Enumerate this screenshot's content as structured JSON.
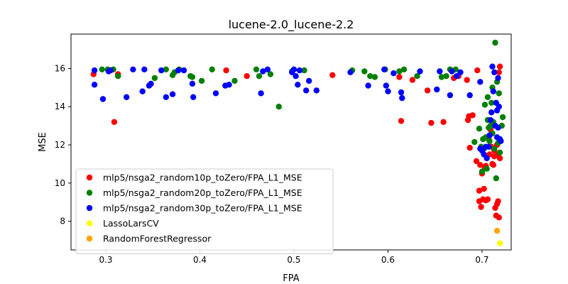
{
  "chart_data": {
    "type": "scatter",
    "title": "lucene-2.0_lucene-2.2",
    "xlabel": "FPA",
    "ylabel": "MSE",
    "xlim": [
      0.263,
      0.731
    ],
    "ylim": [
      6.5,
      17.8
    ],
    "xticks": [
      0.3,
      0.4,
      0.5,
      0.6,
      0.7
    ],
    "xtick_labels": [
      "0.3",
      "0.4",
      "0.5",
      "0.6",
      "0.7"
    ],
    "yticks": [
      8,
      10,
      12,
      14,
      16
    ],
    "ytick_labels": [
      "8",
      "10",
      "12",
      "14",
      "16"
    ],
    "grid": false,
    "legend_position": "lower-left",
    "series": [
      {
        "name": "mlp5/nsga2_random10p_toZero/FPA_L1_MSE",
        "color": "#ff0000",
        "points": [
          [
            0.287,
            15.7
          ],
          [
            0.309,
            13.2
          ],
          [
            0.313,
            15.7
          ],
          [
            0.428,
            15.9
          ],
          [
            0.45,
            15.6
          ],
          [
            0.541,
            15.65
          ],
          [
            0.612,
            15.55
          ],
          [
            0.614,
            13.25
          ],
          [
            0.626,
            15.4
          ],
          [
            0.642,
            14.85
          ],
          [
            0.646,
            13.15
          ],
          [
            0.659,
            13.2
          ],
          [
            0.67,
            15.5
          ],
          [
            0.675,
            15.6
          ],
          [
            0.684,
            15.4
          ],
          [
            0.685,
            13.3
          ],
          [
            0.686,
            13.5
          ],
          [
            0.687,
            11.85
          ],
          [
            0.69,
            13.55
          ],
          [
            0.694,
            11.15
          ],
          [
            0.695,
            15.9
          ],
          [
            0.697,
            9.05
          ],
          [
            0.697,
            9.6
          ],
          [
            0.698,
            10.95
          ],
          [
            0.699,
            8.75
          ],
          [
            0.7,
            10.5
          ],
          [
            0.701,
            9.15
          ],
          [
            0.702,
            9.7
          ],
          [
            0.703,
            10.8
          ],
          [
            0.704,
            9.1
          ],
          [
            0.704,
            10.9
          ],
          [
            0.706,
            9.15
          ],
          [
            0.707,
            12.3
          ],
          [
            0.708,
            11.5
          ],
          [
            0.709,
            12.8
          ],
          [
            0.71,
            11.9
          ],
          [
            0.711,
            11.0
          ],
          [
            0.712,
            10.95
          ],
          [
            0.713,
            11.7
          ],
          [
            0.713,
            11.4
          ],
          [
            0.714,
            8.7
          ],
          [
            0.715,
            8.3
          ],
          [
            0.716,
            8.9
          ],
          [
            0.716,
            12.0
          ],
          [
            0.717,
            9.05
          ],
          [
            0.717,
            11.5
          ],
          [
            0.718,
            8.2
          ],
          [
            0.718,
            15.8
          ],
          [
            0.719,
            11.3
          ],
          [
            0.719,
            16.1
          ]
        ]
      },
      {
        "name": "mlp5/nsga2_random20p_toZero/FPA_L1_MSE",
        "color": "#008000",
        "points": [
          [
            0.296,
            15.95
          ],
          [
            0.302,
            15.95
          ],
          [
            0.308,
            15.95
          ],
          [
            0.313,
            15.6
          ],
          [
            0.352,
            15.5
          ],
          [
            0.364,
            15.95
          ],
          [
            0.371,
            15.65
          ],
          [
            0.373,
            15.8
          ],
          [
            0.378,
            15.95
          ],
          [
            0.39,
            15.6
          ],
          [
            0.392,
            15.55
          ],
          [
            0.402,
            15.35
          ],
          [
            0.413,
            15.95
          ],
          [
            0.437,
            15.35
          ],
          [
            0.46,
            15.95
          ],
          [
            0.463,
            15.6
          ],
          [
            0.475,
            15.7
          ],
          [
            0.484,
            14.0
          ],
          [
            0.498,
            15.85
          ],
          [
            0.511,
            15.9
          ],
          [
            0.562,
            15.9
          ],
          [
            0.575,
            15.85
          ],
          [
            0.581,
            15.6
          ],
          [
            0.586,
            15.55
          ],
          [
            0.597,
            15.95
          ],
          [
            0.612,
            15.85
          ],
          [
            0.617,
            15.95
          ],
          [
            0.631,
            15.6
          ],
          [
            0.657,
            15.55
          ],
          [
            0.662,
            15.6
          ],
          [
            0.666,
            15.95
          ],
          [
            0.672,
            15.95
          ],
          [
            0.692,
            12.15
          ],
          [
            0.697,
            12.85
          ],
          [
            0.699,
            11.9
          ],
          [
            0.7,
            10.6
          ],
          [
            0.701,
            12.3
          ],
          [
            0.702,
            11.8
          ],
          [
            0.703,
            14.1
          ],
          [
            0.704,
            12.4
          ],
          [
            0.705,
            10.75
          ],
          [
            0.706,
            13.3
          ],
          [
            0.706,
            14.5
          ],
          [
            0.707,
            12.9
          ],
          [
            0.708,
            12.2
          ],
          [
            0.709,
            13.0
          ],
          [
            0.71,
            14.2
          ],
          [
            0.711,
            12.6
          ],
          [
            0.711,
            15.0
          ],
          [
            0.712,
            13.2
          ],
          [
            0.713,
            11.8
          ],
          [
            0.714,
            17.35
          ],
          [
            0.715,
            10.25
          ],
          [
            0.716,
            15.3
          ],
          [
            0.717,
            12.1
          ],
          [
            0.718,
            14.7
          ],
          [
            0.719,
            11.6
          ],
          [
            0.721,
            13.0
          ],
          [
            0.722,
            13.45
          ]
        ]
      },
      {
        "name": "mlp5/nsga2_random30p_toZero/FPA_L1_MSE",
        "color": "#0000ff",
        "points": [
          [
            0.288,
            15.9
          ],
          [
            0.288,
            15.15
          ],
          [
            0.297,
            14.4
          ],
          [
            0.303,
            15.85
          ],
          [
            0.305,
            15.9
          ],
          [
            0.322,
            14.5
          ],
          [
            0.329,
            15.95
          ],
          [
            0.339,
            14.8
          ],
          [
            0.341,
            15.95
          ],
          [
            0.346,
            15.1
          ],
          [
            0.348,
            15.2
          ],
          [
            0.359,
            15.9
          ],
          [
            0.364,
            14.5
          ],
          [
            0.371,
            14.65
          ],
          [
            0.377,
            15.9
          ],
          [
            0.383,
            15.9
          ],
          [
            0.392,
            15.2
          ],
          [
            0.393,
            14.5
          ],
          [
            0.417,
            14.7
          ],
          [
            0.427,
            15.1
          ],
          [
            0.431,
            15.15
          ],
          [
            0.465,
            14.7
          ],
          [
            0.467,
            15.85
          ],
          [
            0.472,
            15.95
          ],
          [
            0.498,
            15.8
          ],
          [
            0.5,
            15.95
          ],
          [
            0.502,
            15.6
          ],
          [
            0.504,
            15.15
          ],
          [
            0.506,
            15.9
          ],
          [
            0.513,
            14.85
          ],
          [
            0.516,
            15.35
          ],
          [
            0.524,
            14.85
          ],
          [
            0.56,
            15.8
          ],
          [
            0.579,
            15.1
          ],
          [
            0.596,
            15.95
          ],
          [
            0.598,
            15.1
          ],
          [
            0.6,
            14.8
          ],
          [
            0.606,
            15.75
          ],
          [
            0.614,
            14.75
          ],
          [
            0.615,
            14.45
          ],
          [
            0.634,
            15.85
          ],
          [
            0.652,
            14.9
          ],
          [
            0.655,
            15.85
          ],
          [
            0.666,
            14.6
          ],
          [
            0.668,
            15.85
          ],
          [
            0.673,
            15.6
          ],
          [
            0.677,
            15.8
          ],
          [
            0.687,
            14.6
          ],
          [
            0.698,
            15.3
          ],
          [
            0.698,
            11.8
          ],
          [
            0.7,
            11.7
          ],
          [
            0.702,
            11.5
          ],
          [
            0.704,
            11.9
          ],
          [
            0.705,
            11.3
          ],
          [
            0.707,
            11.9
          ],
          [
            0.708,
            12.5
          ],
          [
            0.709,
            13.3
          ],
          [
            0.71,
            13.7
          ],
          [
            0.711,
            16.1
          ],
          [
            0.712,
            14.8
          ],
          [
            0.713,
            15.8
          ],
          [
            0.714,
            13.0
          ],
          [
            0.715,
            14.2
          ],
          [
            0.716,
            13.8
          ],
          [
            0.716,
            12.4
          ],
          [
            0.717,
            15.5
          ],
          [
            0.717,
            12.9
          ],
          [
            0.718,
            14.0
          ],
          [
            0.719,
            12.3
          ],
          [
            0.72,
            12.2
          ]
        ]
      },
      {
        "name": "LassoLarsCV",
        "color": "#ffff00",
        "points": [
          [
            0.719,
            6.85
          ]
        ]
      },
      {
        "name": "RandomForestRegressor",
        "color": "#ffa500",
        "points": [
          [
            0.716,
            7.5
          ]
        ]
      }
    ]
  }
}
